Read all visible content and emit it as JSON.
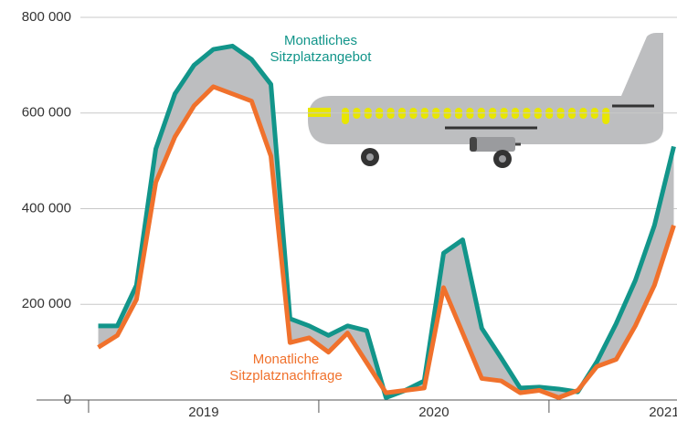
{
  "chart_data": {
    "type": "line",
    "x": [
      2019.042,
      2019.125,
      2019.208,
      2019.292,
      2019.375,
      2019.458,
      2019.542,
      2019.625,
      2019.708,
      2019.792,
      2019.875,
      2019.958,
      2020.042,
      2020.125,
      2020.208,
      2020.292,
      2020.375,
      2020.458,
      2020.542,
      2020.625,
      2020.708,
      2020.792,
      2020.875,
      2020.958,
      2021.042,
      2021.125,
      2021.208,
      2021.292,
      2021.375,
      2021.458,
      2021.542
    ],
    "xlim": [
      2018.774,
      2021.556
    ],
    "xticks": [
      {
        "value": 2019,
        "label": "2019"
      },
      {
        "value": 2020,
        "label": "2020"
      },
      {
        "value": 2021,
        "label": "2021"
      }
    ],
    "ylim": [
      0,
      800000
    ],
    "yticks": [
      {
        "value": 0,
        "label": "0"
      },
      {
        "value": 200000,
        "label": "200 000"
      },
      {
        "value": 400000,
        "label": "400 000"
      },
      {
        "value": 600000,
        "label": "600 000"
      },
      {
        "value": 800000,
        "label": "800 000"
      }
    ],
    "grid": true,
    "fill_between": true,
    "fill_color": "#bdbec0",
    "series": [
      {
        "name": "Monatliches Sitzplatzangebot",
        "color": "#12958a",
        "values": [
          155000,
          155000,
          240000,
          525000,
          640000,
          700000,
          733000,
          740000,
          712000,
          660000,
          170000,
          155000,
          135000,
          155000,
          145000,
          5000,
          20000,
          40000,
          307000,
          335000,
          150000,
          88000,
          25000,
          27000,
          23000,
          17000,
          80000,
          160000,
          250000,
          365000,
          530000
        ]
      },
      {
        "name": "Monatliche Sitzplatznachfrage",
        "color": "#f0712c",
        "values": [
          110000,
          135000,
          210000,
          455000,
          550000,
          615000,
          655000,
          640000,
          625000,
          510000,
          120000,
          130000,
          100000,
          140000,
          78000,
          15000,
          20000,
          25000,
          235000,
          140000,
          45000,
          40000,
          15000,
          20000,
          5000,
          20000,
          70000,
          85000,
          155000,
          240000,
          365000
        ]
      }
    ]
  }
}
